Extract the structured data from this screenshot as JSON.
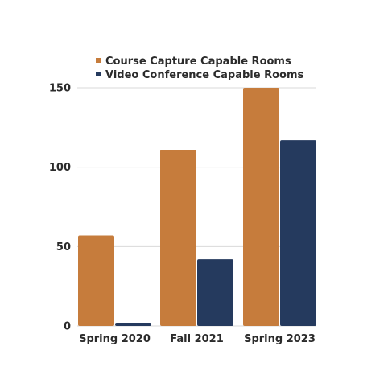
{
  "chart_data": {
    "type": "bar",
    "title": "",
    "xlabel": "",
    "ylabel": "",
    "categories": [
      "Spring 2020",
      "Fall 2021",
      "Spring 2023"
    ],
    "series": [
      {
        "name": "Course Capture Capable Rooms",
        "values": [
          57,
          111,
          150
        ],
        "color": "#c67c3c"
      },
      {
        "name": "Video Conference Capable Rooms",
        "values": [
          2,
          42,
          117
        ],
        "color": "#253a5e"
      }
    ],
    "ylim": [
      0,
      150
    ],
    "yticks": [
      0,
      50,
      100,
      150
    ],
    "grid": true,
    "legend_position": "top"
  }
}
